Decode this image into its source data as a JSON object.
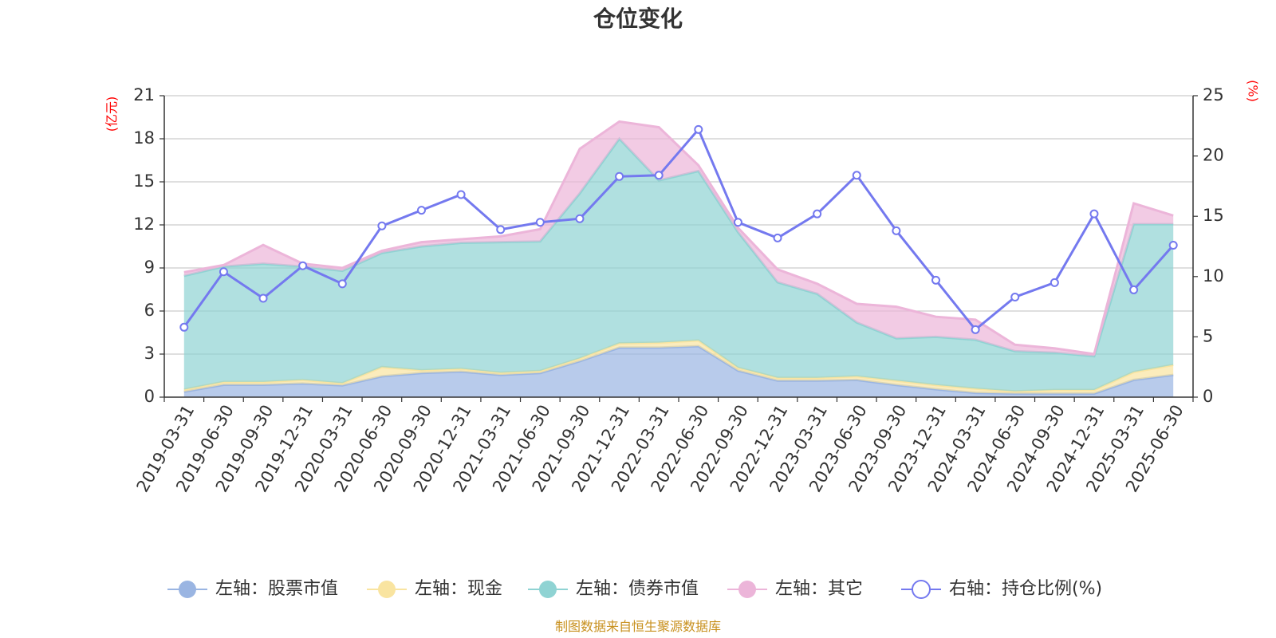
{
  "title": "仓位变化",
  "left_unit": "(亿元)",
  "right_unit": "(%)",
  "source": "制图数据来自恒生聚源数据库",
  "colors": {
    "stock": "#9ab5e2",
    "cash": "#f9e4a0",
    "bond": "#8fd3d3",
    "other": "#ecb5d9",
    "ratio": "#7479ef",
    "axis": "#333333",
    "grid": "#cccccc"
  },
  "chart_data": {
    "type": "area",
    "title": "仓位变化",
    "categories": [
      "2019-03-31",
      "2019-06-30",
      "2019-09-30",
      "2019-12-31",
      "2020-03-31",
      "2020-06-30",
      "2020-09-30",
      "2020-12-31",
      "2021-03-31",
      "2021-06-30",
      "2021-09-30",
      "2021-12-31",
      "2022-03-31",
      "2022-06-30",
      "2022-09-30",
      "2022-12-31",
      "2023-03-31",
      "2023-06-30",
      "2023-09-30",
      "2023-12-31",
      "2024-03-31",
      "2024-06-30",
      "2024-09-30",
      "2024-12-31",
      "2025-03-31",
      "2025-06-30"
    ],
    "left_axis": {
      "unit": "(亿元)",
      "min": 0,
      "max": 21,
      "ticks": [
        "0",
        "3",
        "6",
        "9",
        "12",
        "15",
        "18",
        "21"
      ]
    },
    "right_axis": {
      "unit": "(%)",
      "min": 0,
      "max": 25,
      "ticks": [
        "0",
        "5",
        "10",
        "15",
        "20",
        "25"
      ]
    },
    "grid": true,
    "legend_position": "bottom",
    "series": [
      {
        "name": "左轴：股票市值",
        "axis": "left",
        "stack": "cumulative",
        "color": "#9ab5e2",
        "values": [
          0.38,
          0.86,
          0.86,
          0.95,
          0.82,
          1.45,
          1.68,
          1.78,
          1.55,
          1.68,
          2.5,
          3.45,
          3.45,
          3.55,
          1.85,
          1.15,
          1.15,
          1.2,
          0.85,
          0.55,
          0.3,
          0.25,
          0.25,
          0.25,
          1.2,
          1.55
        ]
      },
      {
        "name": "左轴：现金",
        "axis": "left",
        "stack": "cumulative",
        "color": "#f9e4a0",
        "values": [
          0.15,
          0.2,
          0.2,
          0.25,
          0.15,
          0.65,
          0.2,
          0.2,
          0.15,
          0.15,
          0.2,
          0.3,
          0.35,
          0.4,
          0.2,
          0.2,
          0.2,
          0.25,
          0.3,
          0.3,
          0.3,
          0.15,
          0.25,
          0.25,
          0.55,
          0.7
        ]
      },
      {
        "name": "左轴：债券市值",
        "axis": "left",
        "stack": "cumulative",
        "color": "#8fd3d3",
        "values": [
          7.92,
          8.04,
          8.24,
          7.9,
          7.83,
          7.95,
          8.62,
          8.77,
          9.1,
          9.02,
          11.5,
          14.25,
          11.3,
          11.8,
          9.45,
          6.65,
          5.85,
          3.75,
          2.95,
          3.35,
          3.4,
          2.8,
          2.6,
          2.35,
          10.3,
          9.8
        ]
      },
      {
        "name": "左轴：其它",
        "axis": "left",
        "stack": "cumulative",
        "color": "#ecb5d9",
        "values": [
          0.25,
          0.1,
          1.3,
          0.2,
          0.2,
          0.15,
          0.3,
          0.25,
          0.4,
          0.85,
          3.1,
          1.2,
          3.7,
          0.4,
          0.3,
          0.9,
          0.7,
          1.3,
          2.2,
          1.4,
          1.4,
          0.45,
          0.3,
          0.15,
          1.45,
          0.6
        ]
      },
      {
        "name": "右轴：持仓比例(%)",
        "axis": "right",
        "type": "line",
        "color": "#7479ef",
        "values": [
          5.8,
          10.4,
          8.2,
          10.9,
          9.4,
          14.2,
          15.5,
          16.8,
          13.9,
          14.5,
          14.8,
          18.3,
          18.4,
          22.2,
          14.5,
          13.2,
          15.2,
          18.4,
          13.8,
          9.7,
          5.6,
          8.3,
          9.5,
          15.2,
          8.9,
          12.6
        ]
      }
    ]
  }
}
